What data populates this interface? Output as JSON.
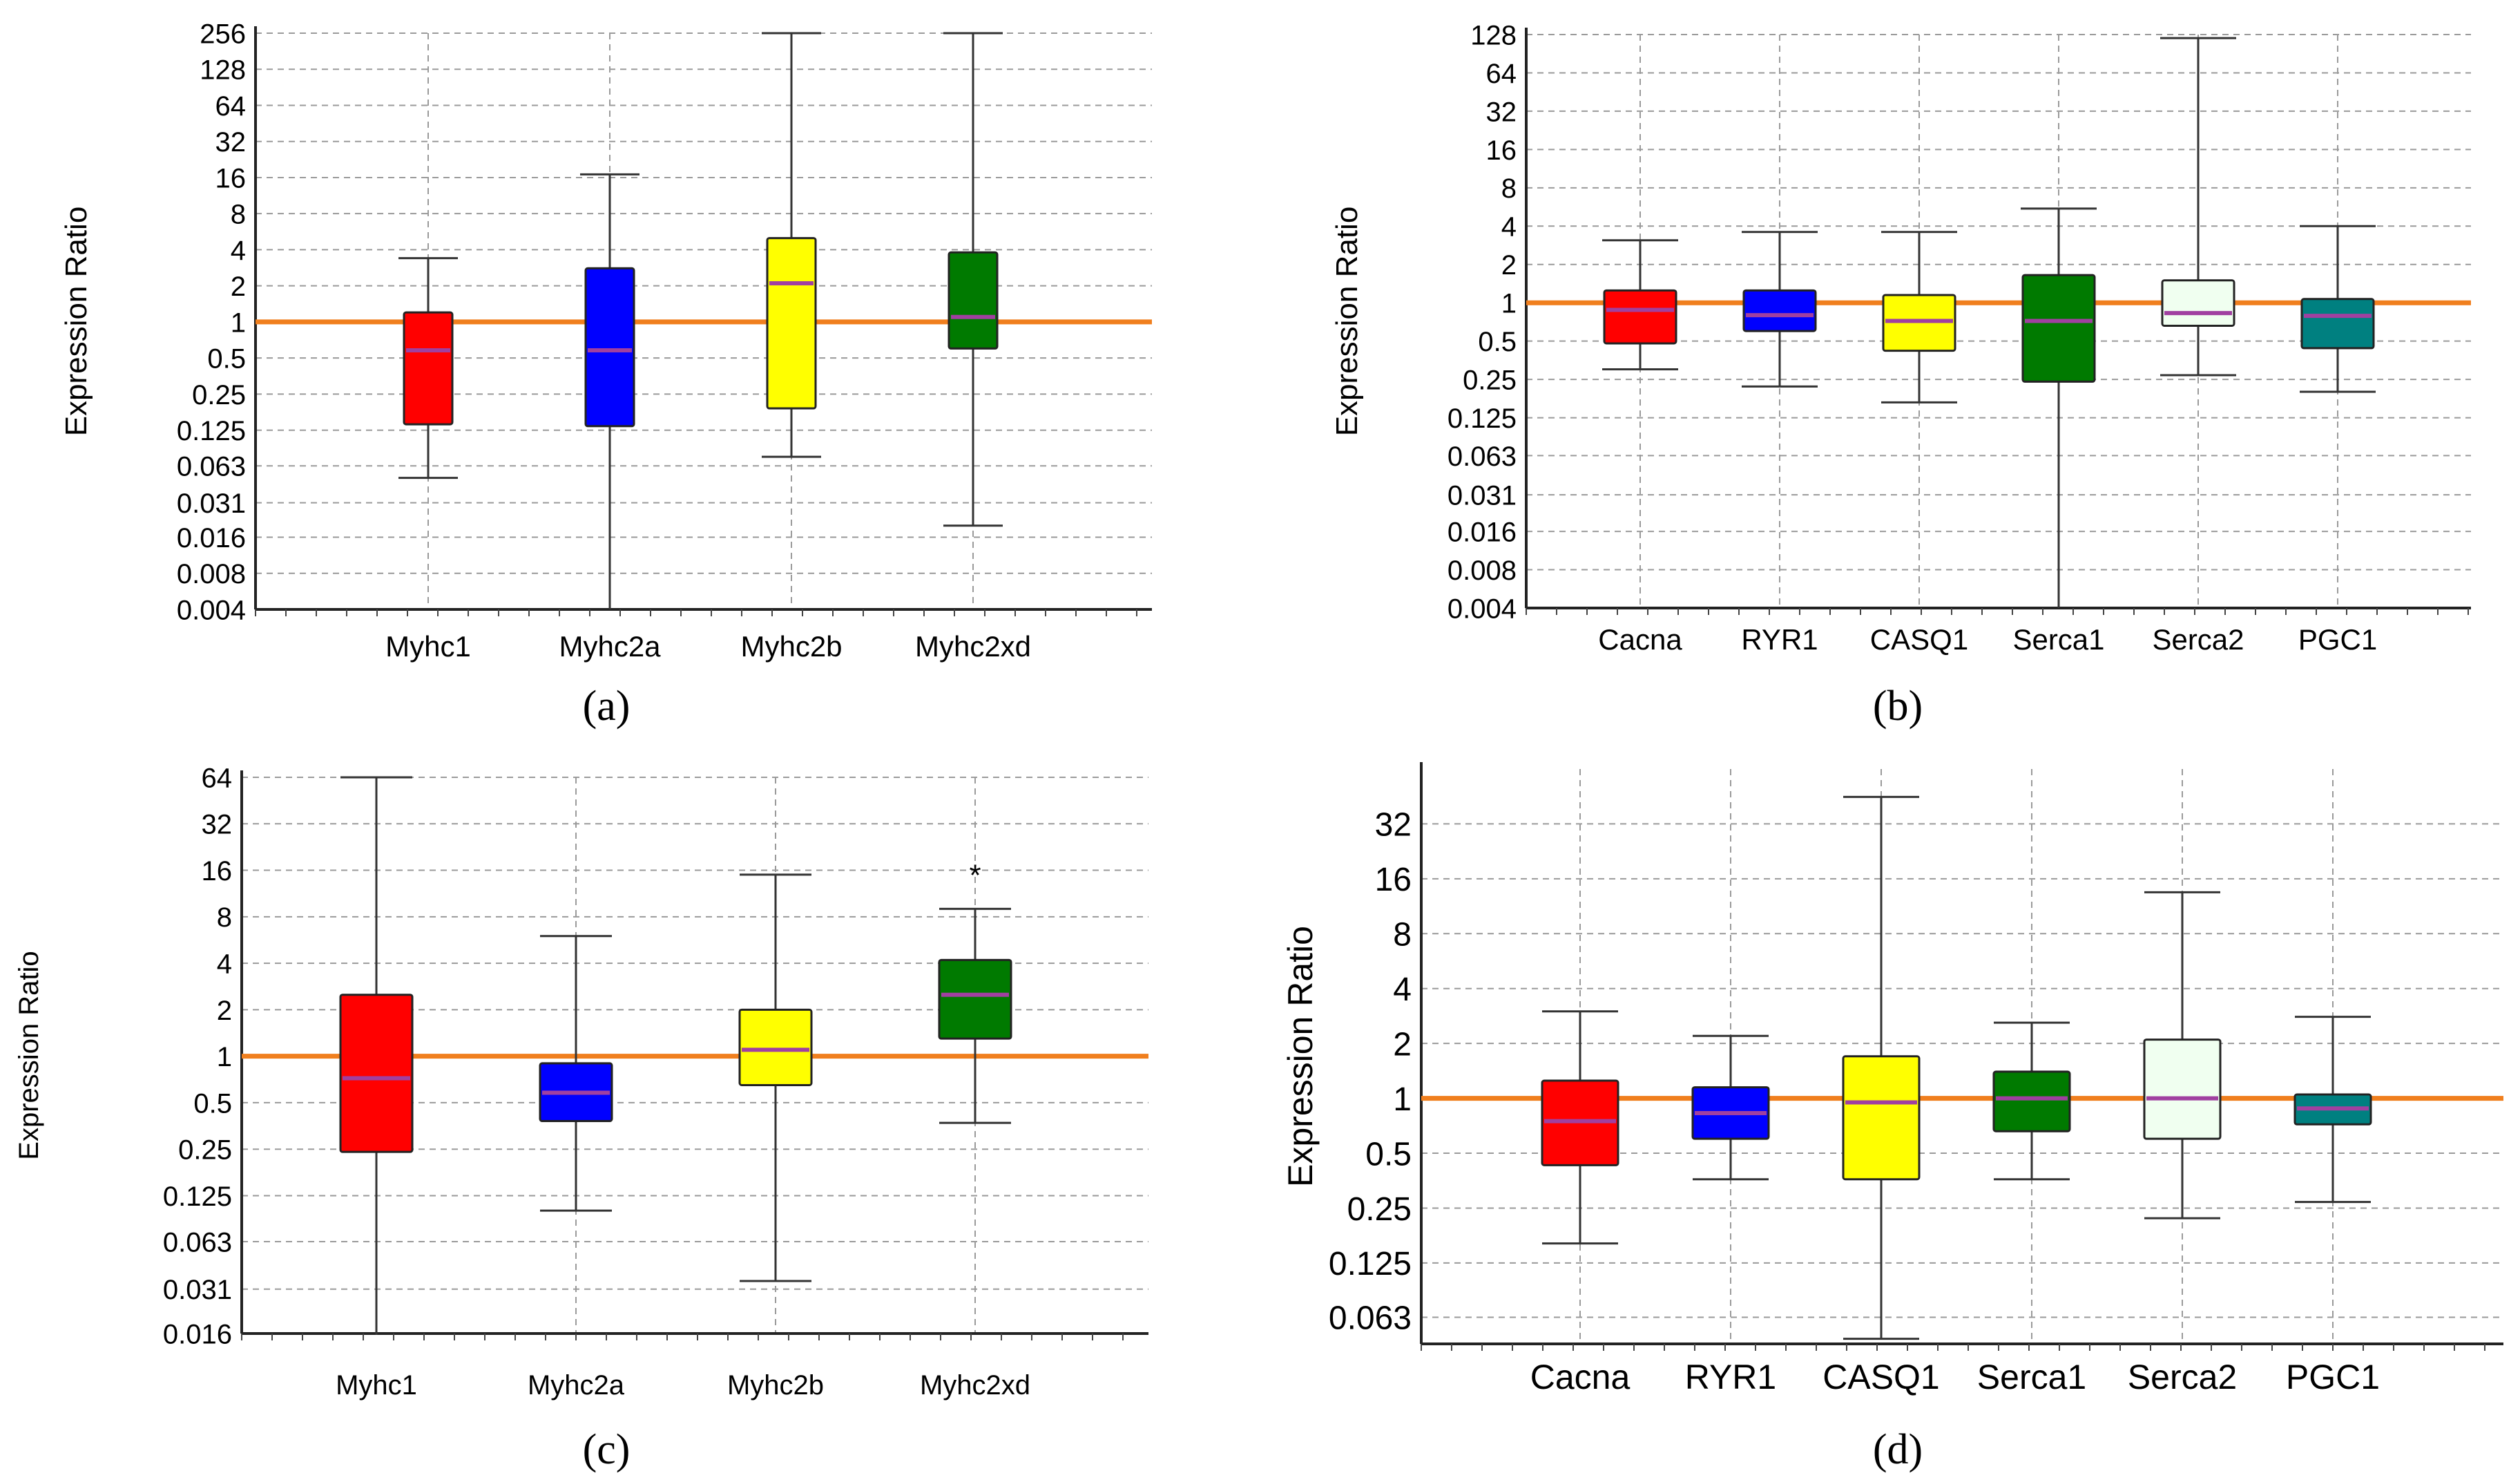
{
  "figure": {
    "captions": [
      "(a)",
      "(b)",
      "(c)",
      "(d)"
    ]
  },
  "chart_data": [
    {
      "id": "a",
      "type": "box",
      "caption": "(a)",
      "ylabel": "Expression Ratio",
      "yscale": "log2",
      "yticks": [
        "256",
        "128",
        "64",
        "32",
        "16",
        "8",
        "4",
        "2",
        "1",
        "0.5",
        "0.25",
        "0.125",
        "0.063",
        "0.031",
        "0.016",
        "0.008",
        "0.004"
      ],
      "ylim": [
        0.004,
        256
      ],
      "reference_line": 1,
      "reference_color": "#f07f1e",
      "median_color": "#a040a0",
      "grid": true,
      "categories": [
        "Myhc1",
        "Myhc2a",
        "Myhc2b",
        "Myhc2xd"
      ],
      "boxes": [
        {
          "label": "Myhc1",
          "whisker_low": 0.05,
          "q1": 0.14,
          "median": 0.58,
          "q3": 1.2,
          "whisker_high": 3.4,
          "color": "#ff0000"
        },
        {
          "label": "Myhc2a",
          "whisker_low": 0.004,
          "q1": 0.135,
          "median": 0.58,
          "q3": 2.8,
          "whisker_high": 17,
          "color": "#0000ff"
        },
        {
          "label": "Myhc2b",
          "whisker_low": 0.075,
          "q1": 0.19,
          "median": 2.1,
          "q3": 5.0,
          "whisker_high": 256,
          "color": "#ffff00"
        },
        {
          "label": "Myhc2xd",
          "whisker_low": 0.02,
          "q1": 0.6,
          "median": 1.1,
          "q3": 3.8,
          "whisker_high": 256,
          "color": "#007a00"
        }
      ]
    },
    {
      "id": "b",
      "type": "box",
      "caption": "(b)",
      "ylabel": "Expression Ratio",
      "yscale": "log2",
      "yticks": [
        "128",
        "64",
        "32",
        "16",
        "8",
        "4",
        "2",
        "1",
        "0.5",
        "0.25",
        "0.125",
        "0.063",
        "0.031",
        "0.016",
        "0.008",
        "0.004"
      ],
      "ylim": [
        0.004,
        128
      ],
      "reference_line": 1,
      "reference_color": "#f07f1e",
      "median_color": "#a040a0",
      "grid": true,
      "categories": [
        "Cacna",
        "RYR1",
        "CASQ1",
        "Serca1",
        "Serca2",
        "PGC1"
      ],
      "boxes": [
        {
          "label": "Cacna",
          "whisker_low": 0.3,
          "q1": 0.48,
          "median": 0.88,
          "q3": 1.25,
          "whisker_high": 3.1,
          "color": "#ff0000"
        },
        {
          "label": "RYR1",
          "whisker_low": 0.22,
          "q1": 0.6,
          "median": 0.8,
          "q3": 1.25,
          "whisker_high": 3.6,
          "color": "#0000ff"
        },
        {
          "label": "CASQ1",
          "whisker_low": 0.165,
          "q1": 0.42,
          "median": 0.72,
          "q3": 1.15,
          "whisker_high": 3.6,
          "color": "#ffff00"
        },
        {
          "label": "Serca1",
          "whisker_low": 0.004,
          "q1": 0.24,
          "median": 0.72,
          "q3": 1.65,
          "whisker_high": 5.5,
          "color": "#007a00"
        },
        {
          "label": "Serca2",
          "whisker_low": 0.27,
          "q1": 0.66,
          "median": 0.83,
          "q3": 1.5,
          "whisker_high": 120,
          "color": "#f0fff0"
        },
        {
          "label": "PGC1",
          "whisker_low": 0.2,
          "q1": 0.44,
          "median": 0.79,
          "q3": 1.07,
          "whisker_high": 4.0,
          "color": "#008080"
        }
      ]
    },
    {
      "id": "c",
      "type": "box",
      "caption": "(c)",
      "ylabel": "Expression Ratio",
      "yscale": "log2",
      "yticks": [
        "64",
        "32",
        "16",
        "8",
        "4",
        "2",
        "1",
        "0.5",
        "0.25",
        "0.125",
        "0.063",
        "0.031",
        "0.016"
      ],
      "ylim": [
        0.016,
        64
      ],
      "reference_line": 1,
      "reference_color": "#f07f1e",
      "median_color": "#a040a0",
      "grid": true,
      "categories": [
        "Myhc1",
        "Myhc2a",
        "Myhc2b",
        "Myhc2xd"
      ],
      "boxes": [
        {
          "label": "Myhc1",
          "whisker_low": 0.012,
          "q1": 0.24,
          "median": 0.72,
          "q3": 2.5,
          "whisker_high": 64,
          "color": "#ff0000"
        },
        {
          "label": "Myhc2a",
          "whisker_low": 0.1,
          "q1": 0.38,
          "median": 0.58,
          "q3": 0.9,
          "whisker_high": 6,
          "color": "#0000ff"
        },
        {
          "label": "Myhc2b",
          "whisker_low": 0.035,
          "q1": 0.65,
          "median": 1.1,
          "q3": 2.0,
          "whisker_high": 15,
          "color": "#ffff00"
        },
        {
          "label": "Myhc2xd",
          "whisker_low": 0.37,
          "q1": 1.3,
          "median": 2.5,
          "q3": 4.2,
          "whisker_high": 9,
          "color": "#007a00",
          "annotation": "*"
        }
      ]
    },
    {
      "id": "d",
      "type": "box",
      "caption": "(d)",
      "ylabel": "Expression Ratio",
      "yscale": "log2",
      "yticks": [
        "32",
        "16",
        "8",
        "4",
        "2",
        "1",
        "0.5",
        "0.25",
        "0.125",
        "0.063"
      ],
      "ylim": [
        0.045,
        64
      ],
      "reference_line": 1,
      "reference_color": "#f07f1e",
      "median_color": "#a040a0",
      "grid": true,
      "categories": [
        "Cacna",
        "RYR1",
        "CASQ1",
        "Serca1",
        "Serca2",
        "PGC1"
      ],
      "boxes": [
        {
          "label": "Cacna",
          "whisker_low": 0.16,
          "q1": 0.43,
          "median": 0.75,
          "q3": 1.25,
          "whisker_high": 3.0,
          "color": "#ff0000"
        },
        {
          "label": "RYR1",
          "whisker_low": 0.36,
          "q1": 0.6,
          "median": 0.83,
          "q3": 1.15,
          "whisker_high": 2.2,
          "color": "#0000ff"
        },
        {
          "label": "CASQ1",
          "whisker_low": 0.048,
          "q1": 0.36,
          "median": 0.95,
          "q3": 1.7,
          "whisker_high": 45,
          "color": "#ffff00"
        },
        {
          "label": "Serca1",
          "whisker_low": 0.36,
          "q1": 0.66,
          "median": 1.0,
          "q3": 1.4,
          "whisker_high": 2.6,
          "color": "#007a00"
        },
        {
          "label": "Serca2",
          "whisker_low": 0.22,
          "q1": 0.6,
          "median": 1.0,
          "q3": 2.1,
          "whisker_high": 13.5,
          "color": "#f0fff0"
        },
        {
          "label": "PGC1",
          "whisker_low": 0.27,
          "q1": 0.72,
          "median": 0.88,
          "q3": 1.05,
          "whisker_high": 2.8,
          "color": "#008080"
        }
      ]
    }
  ]
}
